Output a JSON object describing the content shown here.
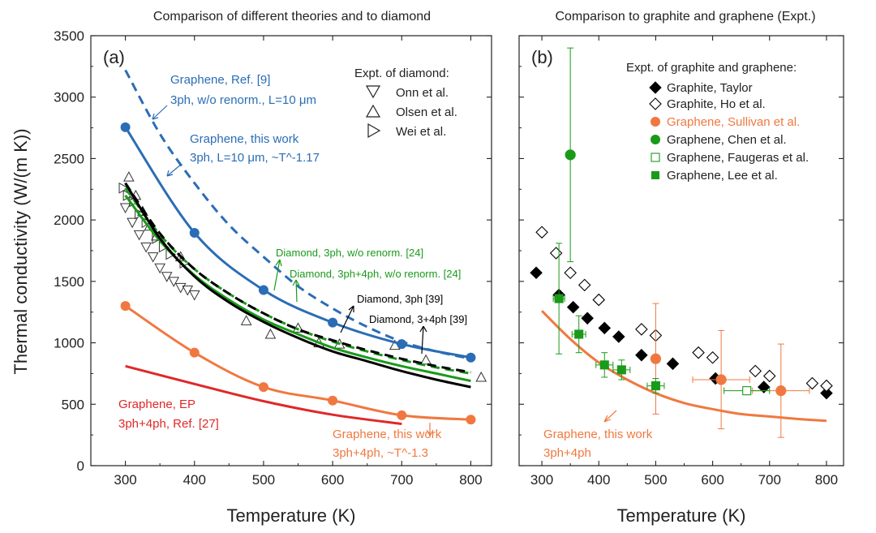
{
  "chart_data": [
    {
      "panel": "(a)",
      "type": "line",
      "title": "Comparison of different theories and to diamond",
      "xlabel": "Temperature (K)",
      "ylabel": "Thermal conductivity (W/(m K))",
      "xlim": [
        250,
        830
      ],
      "ylim": [
        0,
        3500
      ],
      "xticks": [
        300,
        400,
        500,
        600,
        700,
        800
      ],
      "yticks": [
        0,
        500,
        1000,
        1500,
        2000,
        2500,
        3000,
        3500
      ],
      "series": [
        {
          "name": "Graphene, Ref. [9] 3ph, w/o renorm., L=10 μm",
          "color": "#2a6db5",
          "style": "dashed",
          "markers": false,
          "x": [
            300,
            350,
            400,
            450,
            500,
            550,
            600,
            650,
            700,
            750,
            800
          ],
          "y": [
            3220,
            2700,
            2300,
            1960,
            1700,
            1460,
            1280,
            1130,
            1010,
            930,
            870
          ]
        },
        {
          "name": "Graphene, this work 3ph, L=10 μm, ~T^-1.17",
          "color": "#2a6db5",
          "style": "solid",
          "markers": true,
          "x": [
            300,
            400,
            500,
            600,
            700,
            800
          ],
          "y": [
            2755,
            1895,
            1430,
            1165,
            990,
            880
          ]
        },
        {
          "name": "Diamond, 3ph, w/o renorm. [24]",
          "color": "#1a9a1a",
          "style": "dashed",
          "markers": false,
          "x": [
            300,
            350,
            400,
            450,
            500,
            550,
            600,
            650,
            700,
            750,
            800
          ],
          "y": [
            2260,
            1880,
            1600,
            1400,
            1240,
            1110,
            1010,
            930,
            860,
            800,
            750
          ]
        },
        {
          "name": "Diamond, 3ph+4ph, w/o renorm. [24]",
          "color": "#1a9a1a",
          "style": "solid",
          "markers": false,
          "x": [
            300,
            350,
            400,
            450,
            500,
            550,
            600,
            650,
            700,
            750,
            800
          ],
          "y": [
            2200,
            1830,
            1550,
            1350,
            1190,
            1070,
            960,
            880,
            810,
            750,
            690
          ]
        },
        {
          "name": "Diamond, 3ph [39]",
          "color": "#000000",
          "style": "dashed",
          "markers": false,
          "x": [
            300,
            350,
            400,
            450,
            500,
            550,
            600,
            650,
            700,
            750,
            800
          ],
          "y": [
            2300,
            1890,
            1600,
            1400,
            1240,
            1110,
            1020,
            940,
            870,
            810,
            760
          ]
        },
        {
          "name": "Diamond, 3+4ph [39]",
          "color": "#000000",
          "style": "solid",
          "markers": false,
          "x": [
            300,
            350,
            400,
            450,
            500,
            550,
            600,
            650,
            700,
            750,
            800
          ],
          "y": [
            2300,
            1850,
            1540,
            1330,
            1170,
            1040,
            930,
            850,
            770,
            700,
            640
          ]
        },
        {
          "name": "Graphene, this work 3ph+4ph, ~T^-1.3",
          "color": "#f07840",
          "style": "solid",
          "markers": true,
          "x": [
            300,
            400,
            500,
            600,
            700,
            800
          ],
          "y": [
            1300,
            920,
            640,
            530,
            410,
            375
          ]
        },
        {
          "name": "Graphene, EP 3ph+4ph, Ref. [27]",
          "color": "#e02828",
          "style": "solid",
          "markers": false,
          "x": [
            300,
            400,
            500,
            600,
            700
          ],
          "y": [
            810,
            665,
            525,
            415,
            340
          ]
        }
      ],
      "scatter": [
        {
          "name": "Onn et al.",
          "marker": "triangle-down",
          "x": [
            300,
            310,
            320,
            330,
            340,
            350,
            360,
            370,
            380,
            390,
            400
          ],
          "y": [
            2100,
            1980,
            1880,
            1780,
            1700,
            1610,
            1540,
            1500,
            1450,
            1430,
            1390
          ]
        },
        {
          "name": "Olsen et al.",
          "marker": "triangle-up",
          "x": [
            305,
            315,
            325,
            335,
            345,
            380,
            475,
            510,
            550,
            580,
            610,
            690,
            735,
            815
          ],
          "y": [
            2350,
            2200,
            2070,
            1950,
            1870,
            1700,
            1180,
            1070,
            1120,
            1000,
            990,
            980,
            860,
            720
          ]
        },
        {
          "name": "Wei et al.",
          "marker": "triangle-right",
          "x": [
            297,
            303,
            312,
            320,
            330,
            345,
            355,
            365,
            385
          ],
          "y": [
            2260,
            2200,
            2150,
            2050,
            1980,
            1850,
            1780,
            1720,
            1650
          ]
        }
      ],
      "annotations": [
        "Graphene, Ref. [9]",
        "3ph, w/o renorm., L=10 μm",
        "Graphene, this work",
        "3ph, L=10 μm, ~T^-1.17",
        "Diamond, 3ph, w/o renorm. [24]",
        "Diamond, 3ph+4ph, w/o renorm. [24]",
        "Diamond, 3ph [39]",
        "Diamond, 3+4ph [39]",
        "Graphene, EP",
        "3ph+4ph, Ref. [27]",
        "Graphene, this work",
        "3ph+4ph, ~T^-1.3"
      ],
      "legend_title": "Expt. of diamond:"
    },
    {
      "panel": "(b)",
      "type": "scatter",
      "title": "Comparison to graphite and graphene (Expt.)",
      "xlabel": "Temperature (K)",
      "ylabel": "",
      "xlim": [
        260,
        830
      ],
      "ylim": [
        0,
        3500
      ],
      "xticks": [
        300,
        400,
        500,
        600,
        700,
        800
      ],
      "yticks": [
        0,
        500,
        1000,
        1500,
        2000,
        2500,
        3000,
        3500
      ],
      "legend_title": "Expt. of graphite and graphene:",
      "series": [
        {
          "name": "Graphite, Taylor",
          "marker": "diamond",
          "filled": true,
          "color": "#000000",
          "x": [
            290,
            330,
            355,
            380,
            410,
            435,
            475,
            530,
            605,
            690,
            800
          ],
          "y": [
            1570,
            1390,
            1290,
            1200,
            1120,
            1050,
            900,
            830,
            710,
            640,
            590
          ]
        },
        {
          "name": "Graphite, Ho et al.",
          "marker": "diamond",
          "filled": false,
          "color": "#000000",
          "x": [
            300,
            325,
            350,
            375,
            400,
            475,
            500,
            575,
            600,
            675,
            700,
            775,
            800
          ],
          "y": [
            1900,
            1730,
            1570,
            1470,
            1350,
            1110,
            1060,
            920,
            880,
            770,
            730,
            670,
            650
          ]
        },
        {
          "name": "Graphene, Sullivan et al.",
          "marker": "circle",
          "filled": true,
          "color": "#f07840",
          "x": [
            500,
            615,
            720
          ],
          "y": [
            870,
            700,
            610
          ],
          "yerr": [
            450,
            400,
            380
          ],
          "xerr": [
            0,
            50,
            50
          ]
        },
        {
          "name": "Graphene, Chen et al.",
          "marker": "circle",
          "filled": true,
          "color": "#1a9a1a",
          "x": [
            350
          ],
          "y": [
            2530
          ],
          "yerr": [
            870
          ]
        },
        {
          "name": "Graphene, Faugeras et al.",
          "marker": "square",
          "filled": false,
          "color": "#1a9a1a",
          "x": [
            660
          ],
          "y": [
            610
          ],
          "xerr": [
            40
          ]
        },
        {
          "name": "Graphene, Lee et al.",
          "marker": "square",
          "filled": true,
          "color": "#1a9a1a",
          "x": [
            330,
            365,
            410,
            440,
            500
          ],
          "y": [
            1360,
            1070,
            820,
            780,
            650
          ],
          "yerr": [
            450,
            150,
            100,
            80,
            60
          ],
          "xerr": [
            10,
            12,
            15,
            15,
            15
          ]
        }
      ],
      "line": {
        "name": "Graphene, this work 3ph+4ph",
        "color": "#f07840",
        "x": [
          300,
          350,
          400,
          450,
          500,
          550,
          600,
          650,
          700,
          750,
          800
        ],
        "y": [
          1260,
          1030,
          840,
          700,
          590,
          510,
          460,
          420,
          400,
          380,
          365
        ]
      },
      "annotations": [
        "Graphene, this work",
        "3ph+4ph"
      ]
    }
  ]
}
